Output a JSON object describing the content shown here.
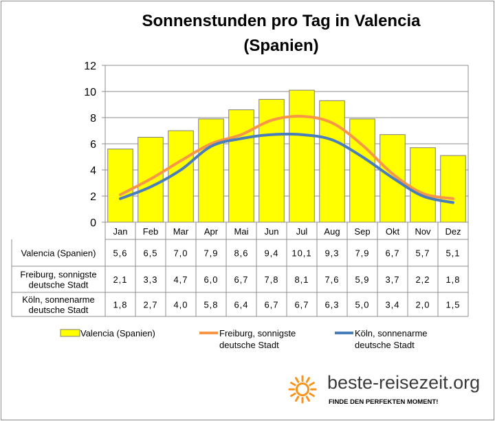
{
  "chart_data": {
    "type": "bar",
    "title_line1": "Sonnenstunden pro Tag in Valencia",
    "title_line2": "(Spanien)",
    "categories": [
      "Jan",
      "Feb",
      "Mar",
      "Apr",
      "Mai",
      "Jun",
      "Jul",
      "Aug",
      "Sep",
      "Okt",
      "Nov",
      "Dez"
    ],
    "ylim": [
      0,
      12
    ],
    "yticks": [
      "0",
      "2",
      "4",
      "6",
      "8",
      "10",
      "12"
    ],
    "grid": true,
    "legend_position": "bottom",
    "series": [
      {
        "name": "Valencia (Spanien)",
        "row_label_lines": [
          "Valencia (Spanien)"
        ],
        "legend_lines": [
          "Valencia (Spanien)"
        ],
        "mark": "bar",
        "color": "#ffff00",
        "values": [
          5.6,
          6.5,
          7.0,
          7.9,
          8.6,
          9.4,
          10.1,
          9.3,
          7.9,
          6.7,
          5.7,
          5.1
        ],
        "labels": [
          "5,6",
          "6,5",
          "7,0",
          "7,9",
          "8,6",
          "9,4",
          "10,1",
          "9,3",
          "7,9",
          "6,7",
          "5,7",
          "5,1"
        ]
      },
      {
        "name": "Freiburg, sonnigste deutsche Stadt",
        "row_label_lines": [
          "Freiburg, sonnigste",
          "deutsche Stadt"
        ],
        "legend_lines": [
          "Freiburg, sonnigste",
          "deutsche Stadt"
        ],
        "mark": "line",
        "color": "#f79646",
        "values": [
          2.1,
          3.3,
          4.7,
          6.0,
          6.7,
          7.8,
          8.1,
          7.6,
          5.9,
          3.7,
          2.2,
          1.8
        ],
        "labels": [
          "2,1",
          "3,3",
          "4,7",
          "6,0",
          "6,7",
          "7,8",
          "8,1",
          "7,6",
          "5,9",
          "3,7",
          "2,2",
          "1,8"
        ]
      },
      {
        "name": "Köln, sonnenarme deutsche Stadt",
        "row_label_lines": [
          "Köln, sonnenarme",
          "deutsche Stadt"
        ],
        "legend_lines": [
          "Köln, sonnenarme",
          "deutsche Stadt"
        ],
        "mark": "line",
        "color": "#4a7ebb",
        "values": [
          1.8,
          2.7,
          4.0,
          5.8,
          6.4,
          6.7,
          6.7,
          6.3,
          5.0,
          3.4,
          2.0,
          1.5
        ],
        "labels": [
          "1,8",
          "2,7",
          "4,0",
          "5,8",
          "6,4",
          "6,7",
          "6,7",
          "6,3",
          "5,0",
          "3,4",
          "2,0",
          "1,5"
        ]
      }
    ]
  },
  "branding": {
    "site": "beste-reisezeit.org",
    "tagline": "FINDE DEN PERFEKTEN MOMENT!",
    "logo_icon": "sun-icon",
    "logo_color": "#f7941d"
  }
}
